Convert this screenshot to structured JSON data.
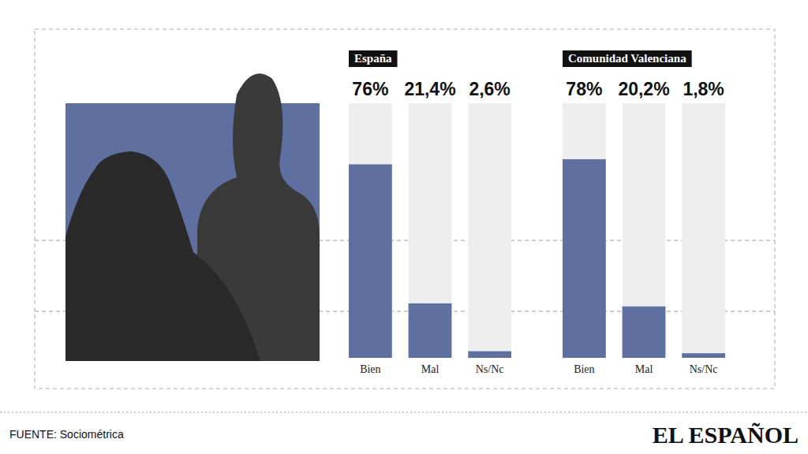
{
  "chart_data": [
    {
      "type": "bar",
      "title": "España",
      "categories": [
        "Bien",
        "Mal",
        "Ns/Nc"
      ],
      "values": [
        76,
        21.4,
        2.6
      ],
      "value_labels": [
        "76%",
        "21,4%",
        "2,6%"
      ],
      "color": "#5f6f9f",
      "ylim": [
        0,
        100
      ],
      "data_labels": true,
      "tick_labels": false,
      "grid": false
    },
    {
      "type": "bar",
      "title": "Comunidad Valenciana",
      "categories": [
        "Bien",
        "Mal",
        "Ns/Nc"
      ],
      "values": [
        78,
        20.2,
        1.8
      ],
      "value_labels": [
        "78%",
        "20,2%",
        "1,8%"
      ],
      "color": "#5f6f9f",
      "ylim": [
        0,
        100
      ],
      "data_labels": true,
      "tick_labels": false,
      "grid": false
    }
  ],
  "footer": {
    "source": "FUENTE: Sociométrica",
    "logo": "EL ESPAÑOL"
  }
}
